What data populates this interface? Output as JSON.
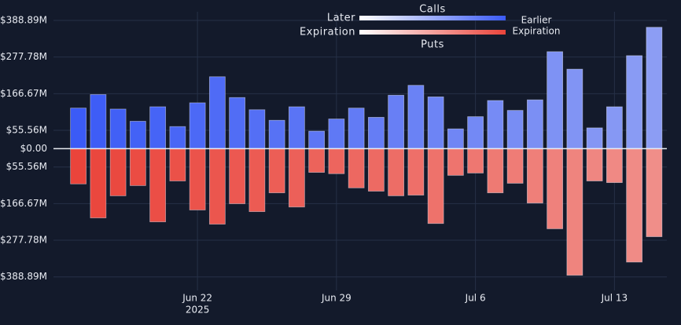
{
  "chart_data": {
    "type": "diverging-bar",
    "categories": [
      null,
      null,
      null,
      null,
      null,
      null,
      "Jun 22",
      null,
      null,
      null,
      null,
      null,
      null,
      "Jun 29",
      null,
      null,
      null,
      null,
      null,
      null,
      "Jul 6",
      null,
      null,
      null,
      null,
      null,
      null,
      "Jul 13",
      null,
      null
    ],
    "x_year_label": "2025",
    "series": [
      {
        "name": "Calls",
        "color": "#3b5bf6",
        "color_late": "#8c9df4",
        "values": [
          123,
          164,
          120,
          83,
          127,
          67,
          139,
          218,
          155,
          118,
          86,
          127,
          53,
          90,
          123,
          95,
          162,
          192,
          157,
          60,
          97,
          146,
          116,
          148,
          294,
          241,
          63,
          127,
          282,
          368
        ]
      },
      {
        "name": "Puts",
        "color": "#ea443b",
        "color_late": "#f08e89",
        "values": [
          -107,
          -210,
          -143,
          -112,
          -222,
          -98,
          -186,
          -229,
          -167,
          -191,
          -134,
          -177,
          -72,
          -76,
          -119,
          -129,
          -143,
          -141,
          -227,
          -81,
          -74,
          -134,
          -105,
          -165,
          -243,
          -384,
          -98,
          -103,
          -344,
          -267
        ]
      }
    ],
    "legend": {
      "left_label": [
        "Later",
        "Expiration"
      ],
      "right_label": [
        "Earlier",
        "Expiration"
      ]
    },
    "ylim": [
      -430,
      415
    ],
    "yticks": [
      {
        "value": 388.89,
        "label": "$388.89M"
      },
      {
        "value": 277.78,
        "label": "$277.78M"
      },
      {
        "value": 166.67,
        "label": "$166.67M"
      },
      {
        "value": 55.56,
        "label": "$55.56M"
      },
      {
        "value": 0,
        "label": "$0.00"
      },
      {
        "value": -55.56,
        "label": "$55.56M"
      },
      {
        "value": -166.67,
        "label": "$166.67M"
      },
      {
        "value": -277.78,
        "label": "$277.78M"
      },
      {
        "value": -388.89,
        "label": "$388.89M"
      }
    ],
    "grid": true
  }
}
